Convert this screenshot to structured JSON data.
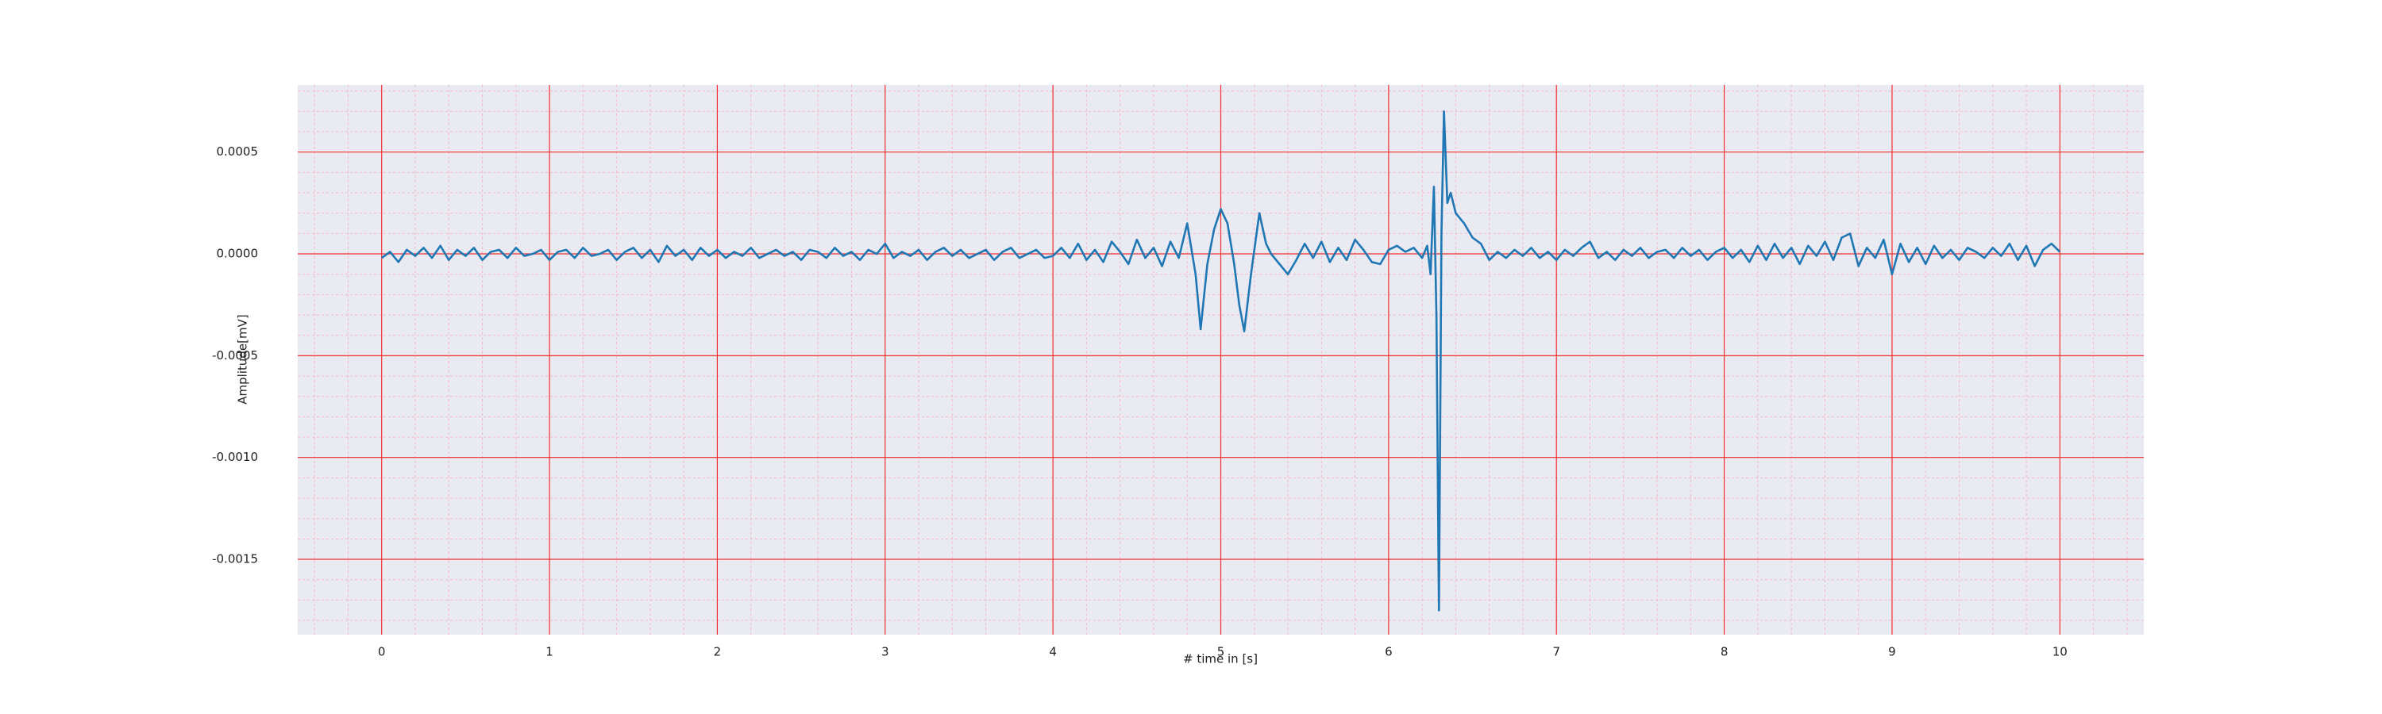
{
  "chart_data": {
    "type": "line",
    "xlabel": "# time in [s]",
    "ylabel": "Amplitude[mV]",
    "color": "#1f77b4",
    "grid": true,
    "grid_color": "#f03030",
    "minor_grid": true,
    "x": [
      0,
      0.05,
      0.1,
      0.15,
      0.2,
      0.25,
      0.3,
      0.35,
      0.4,
      0.45,
      0.5,
      0.55,
      0.6,
      0.65,
      0.7,
      0.75,
      0.8,
      0.85,
      0.9,
      0.95,
      1,
      1.05,
      1.1,
      1.15,
      1.2,
      1.25,
      1.3,
      1.35,
      1.4,
      1.45,
      1.5,
      1.55,
      1.6,
      1.65,
      1.7,
      1.75,
      1.8,
      1.85,
      1.9,
      1.95,
      2,
      2.05,
      2.1,
      2.15,
      2.2,
      2.25,
      2.3,
      2.35,
      2.4,
      2.45,
      2.5,
      2.55,
      2.6,
      2.65,
      2.7,
      2.75,
      2.8,
      2.85,
      2.9,
      2.95,
      3,
      3.05,
      3.1,
      3.15,
      3.2,
      3.25,
      3.3,
      3.35,
      3.4,
      3.45,
      3.5,
      3.55,
      3.6,
      3.65,
      3.7,
      3.75,
      3.8,
      3.85,
      3.9,
      3.95,
      4,
      4.05,
      4.1,
      4.15,
      4.2,
      4.25,
      4.3,
      4.35,
      4.4,
      4.45,
      4.5,
      4.55,
      4.6,
      4.65,
      4.7,
      4.75,
      4.8,
      4.85,
      4.88,
      4.92,
      4.96,
      5,
      5.04,
      5.08,
      5.11,
      5.14,
      5.18,
      5.23,
      5.27,
      5.3,
      5.35,
      5.4,
      5.45,
      5.5,
      5.55,
      5.6,
      5.65,
      5.7,
      5.75,
      5.8,
      5.85,
      5.9,
      5.95,
      6,
      6.05,
      6.1,
      6.15,
      6.2,
      6.23,
      6.25,
      6.27,
      6.285,
      6.3,
      6.315,
      6.33,
      6.35,
      6.37,
      6.4,
      6.45,
      6.5,
      6.55,
      6.6,
      6.65,
      6.7,
      6.75,
      6.8,
      6.85,
      6.9,
      6.95,
      7,
      7.05,
      7.1,
      7.15,
      7.2,
      7.25,
      7.3,
      7.35,
      7.4,
      7.45,
      7.5,
      7.55,
      7.6,
      7.65,
      7.7,
      7.75,
      7.8,
      7.85,
      7.9,
      7.95,
      8,
      8.05,
      8.1,
      8.15,
      8.2,
      8.25,
      8.3,
      8.35,
      8.4,
      8.45,
      8.5,
      8.55,
      8.6,
      8.65,
      8.7,
      8.75,
      8.8,
      8.85,
      8.9,
      8.95,
      9,
      9.05,
      9.1,
      9.15,
      9.2,
      9.25,
      9.3,
      9.35,
      9.4,
      9.45,
      9.5,
      9.55,
      9.6,
      9.65,
      9.7,
      9.75,
      9.8,
      9.85,
      9.9,
      9.95,
      10
    ],
    "values": [
      -2e-05,
      1e-05,
      -4e-05,
      2e-05,
      -1e-05,
      3e-05,
      -2e-05,
      4e-05,
      -3e-05,
      2e-05,
      -1e-05,
      3e-05,
      -3e-05,
      1e-05,
      2e-05,
      -2e-05,
      3e-05,
      -1e-05,
      0,
      2e-05,
      -3e-05,
      1e-05,
      2e-05,
      -2e-05,
      3e-05,
      -1e-05,
      0,
      2e-05,
      -3e-05,
      1e-05,
      3e-05,
      -2e-05,
      2e-05,
      -4e-05,
      4e-05,
      -1e-05,
      2e-05,
      -3e-05,
      3e-05,
      -1e-05,
      2e-05,
      -2e-05,
      1e-05,
      -1e-05,
      3e-05,
      -2e-05,
      0,
      2e-05,
      -1e-05,
      1e-05,
      -3e-05,
      2e-05,
      1e-05,
      -2e-05,
      3e-05,
      -1e-05,
      1e-05,
      -3e-05,
      2e-05,
      0,
      5e-05,
      -2e-05,
      1e-05,
      -1e-05,
      2e-05,
      -3e-05,
      1e-05,
      3e-05,
      -1e-05,
      2e-05,
      -2e-05,
      0,
      2e-05,
      -3e-05,
      1e-05,
      3e-05,
      -2e-05,
      0,
      2e-05,
      -2e-05,
      -1e-05,
      3e-05,
      -2e-05,
      5e-05,
      -3e-05,
      2e-05,
      -4e-05,
      6e-05,
      1e-05,
      -5e-05,
      7e-05,
      -2e-05,
      3e-05,
      -6e-05,
      6e-05,
      -2e-05,
      0.00015,
      -0.0001,
      -0.00037,
      -5e-05,
      0.00012,
      0.00022,
      0.00015,
      -5e-05,
      -0.00025,
      -0.00038,
      -0.0001,
      0.0002,
      5e-05,
      0,
      -5e-05,
      -0.0001,
      -3e-05,
      5e-05,
      -2e-05,
      6e-05,
      -4e-05,
      3e-05,
      -3e-05,
      7e-05,
      2e-05,
      -4e-05,
      -5e-05,
      2e-05,
      4e-05,
      1e-05,
      3e-05,
      -2e-05,
      4e-05,
      -0.0001,
      0.00033,
      -0.0003,
      -0.00175,
      0.0001,
      0.0007,
      0.00025,
      0.0003,
      0.0002,
      0.00015,
      8e-05,
      5e-05,
      -3e-05,
      1e-05,
      -2e-05,
      2e-05,
      -1e-05,
      3e-05,
      -2e-05,
      1e-05,
      -3e-05,
      2e-05,
      -1e-05,
      3e-05,
      6e-05,
      -2e-05,
      1e-05,
      -3e-05,
      2e-05,
      -1e-05,
      3e-05,
      -2e-05,
      1e-05,
      2e-05,
      -2e-05,
      3e-05,
      -1e-05,
      2e-05,
      -3e-05,
      1e-05,
      3e-05,
      -2e-05,
      2e-05,
      -4e-05,
      4e-05,
      -3e-05,
      5e-05,
      -2e-05,
      3e-05,
      -5e-05,
      4e-05,
      -1e-05,
      6e-05,
      -3e-05,
      8e-05,
      0.0001,
      -6e-05,
      3e-05,
      -2e-05,
      7e-05,
      -0.0001,
      5e-05,
      -4e-05,
      3e-05,
      -5e-05,
      4e-05,
      -2e-05,
      2e-05,
      -3e-05,
      3e-05,
      1e-05,
      -2e-05,
      3e-05,
      -1e-05,
      5e-05,
      -3e-05,
      4e-05,
      -6e-05,
      2e-05,
      5e-05,
      1e-05
    ],
    "xlim": [
      -0.5,
      10.5
    ],
    "ylim": [
      -0.00187,
      0.00083
    ],
    "xticks": [
      0,
      1,
      2,
      3,
      4,
      5,
      6,
      7,
      8,
      9,
      10
    ],
    "yticks": [
      {
        "value": -0.0015,
        "label": "-0.0015"
      },
      {
        "value": -0.001,
        "label": "-0.0010"
      },
      {
        "value": -0.0005,
        "label": "-0.0005"
      },
      {
        "value": 0,
        "label": "0.0000"
      },
      {
        "value": 0.0005,
        "label": "0.0005"
      }
    ]
  }
}
